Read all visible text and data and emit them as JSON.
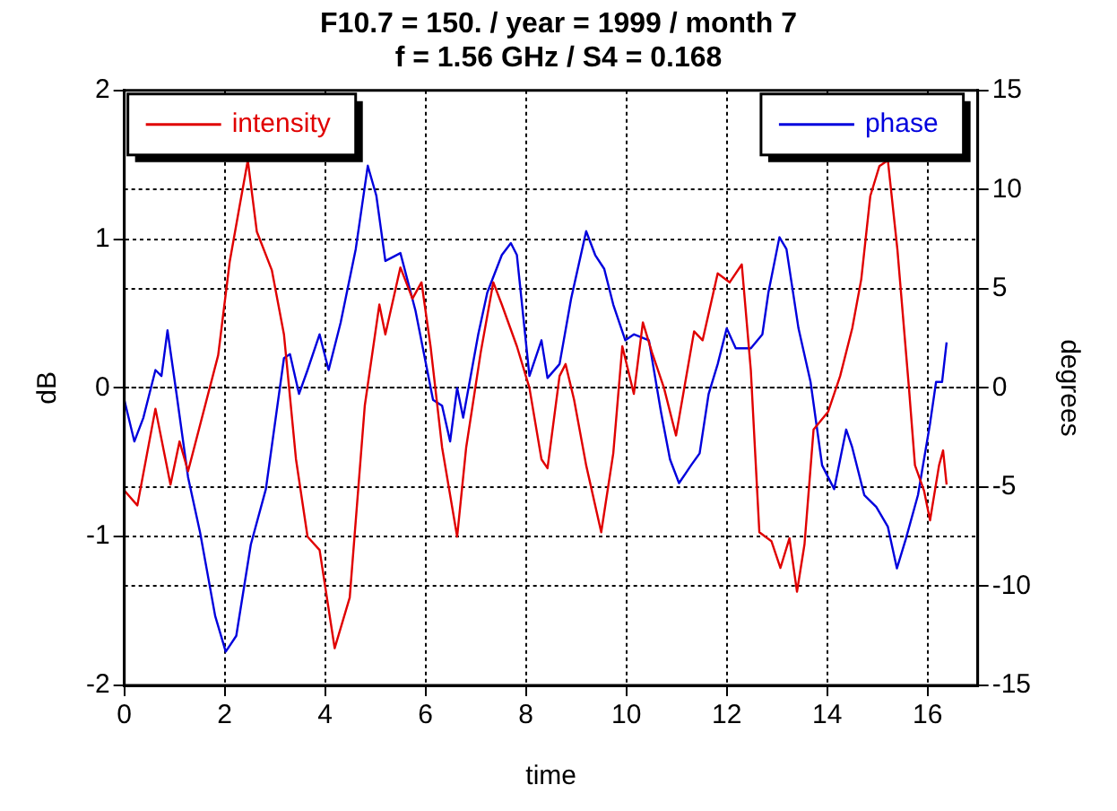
{
  "chart_data": {
    "type": "line",
    "title": "F10.7 = 150. / year = 1999 / month 7",
    "subtitle": "f = 1.56 GHz / S4 = 0.168",
    "xlabel": "time",
    "ylabel": "dB",
    "y2label": "degrees",
    "xlim": [
      0,
      17
    ],
    "xticks": [
      0,
      2,
      4,
      6,
      8,
      10,
      12,
      14,
      16
    ],
    "ylim": [
      -2,
      2
    ],
    "yticks": [
      -2,
      -1,
      0,
      1,
      2
    ],
    "y2lim": [
      -15,
      15
    ],
    "y2ticks": [
      -15,
      -10,
      -5,
      0,
      5,
      10,
      15
    ],
    "grid": true,
    "legend": "top",
    "marker": "none",
    "line_style": "solid",
    "series": [
      {
        "name": "intensity",
        "color": "#e00000",
        "x": [
          0,
          0.26,
          0.62,
          0.92,
          1.1,
          1.27,
          1.87,
          2.1,
          2.29,
          2.46,
          2.64,
          2.94,
          3.18,
          3.42,
          3.65,
          3.89,
          4.19,
          4.49,
          4.79,
          5.08,
          5.2,
          5.5,
          5.74,
          5.92,
          6.1,
          6.33,
          6.63,
          6.81,
          7.1,
          7.35,
          7.52,
          7.82,
          8.07,
          8.31,
          8.43,
          8.67,
          8.79,
          8.96,
          9.2,
          9.5,
          9.74,
          9.92,
          10.15,
          10.33,
          10.51,
          10.75,
          10.99,
          11.35,
          11.52,
          11.82,
          12.06,
          12.3,
          12.48,
          12.65,
          12.89,
          13.07,
          13.25,
          13.4,
          13.55,
          13.73,
          14.02,
          14.26,
          14.5,
          14.68,
          14.86,
          15.04,
          15.21,
          15.4,
          15.63,
          15.75,
          15.93,
          16.05,
          16.23,
          16.31,
          16.38
        ],
        "values": [
          -0.69,
          -0.79,
          -0.14,
          -0.65,
          -0.36,
          -0.56,
          0.22,
          0.85,
          1.21,
          1.53,
          1.05,
          0.79,
          0.36,
          -0.48,
          -1.0,
          -1.09,
          -1.75,
          -1.41,
          -0.12,
          0.56,
          0.36,
          0.81,
          0.6,
          0.71,
          0.28,
          -0.4,
          -1.0,
          -0.4,
          0.24,
          0.71,
          0.56,
          0.28,
          0,
          -0.48,
          -0.54,
          0.08,
          0.16,
          -0.08,
          -0.52,
          -0.97,
          -0.44,
          0.28,
          -0.04,
          0.44,
          0.24,
          0,
          -0.32,
          0.38,
          0.32,
          0.77,
          0.71,
          0.83,
          0.12,
          -0.97,
          -1.03,
          -1.21,
          -1.01,
          -1.37,
          -1.05,
          -0.28,
          -0.16,
          0.08,
          0.4,
          0.73,
          1.29,
          1.49,
          1.53,
          0.93,
          0,
          -0.52,
          -0.69,
          -0.89,
          -0.52,
          -0.42,
          -0.65
        ]
      },
      {
        "name": "phase",
        "color": "#0000dd",
        "axis": "y2",
        "x": [
          0,
          0.2,
          0.38,
          0.62,
          0.74,
          0.86,
          1.04,
          1.27,
          1.51,
          1.81,
          2.02,
          2.23,
          2.52,
          2.82,
          3.18,
          3.3,
          3.48,
          3.65,
          3.89,
          4.07,
          4.31,
          4.61,
          4.85,
          5.02,
          5.2,
          5.5,
          5.8,
          6.15,
          6.33,
          6.49,
          6.63,
          6.75,
          7.05,
          7.23,
          7.52,
          7.7,
          7.82,
          8.07,
          8.31,
          8.43,
          8.67,
          8.9,
          9.2,
          9.38,
          9.56,
          9.74,
          9.98,
          10.15,
          10.45,
          10.69,
          10.87,
          11.05,
          11.29,
          11.46,
          11.64,
          11.82,
          12.0,
          12.18,
          12.48,
          12.71,
          12.83,
          13.05,
          13.19,
          13.43,
          13.67,
          13.9,
          14.14,
          14.38,
          14.5,
          14.74,
          14.98,
          15.21,
          15.39,
          15.57,
          15.81,
          16.05,
          16.17,
          16.29,
          16.38
        ],
        "values": [
          -0.6,
          -2.7,
          -1.5,
          0.9,
          0.6,
          2.9,
          -0.3,
          -4.5,
          -7.3,
          -11.5,
          -13.3,
          -12.5,
          -7.9,
          -5.1,
          1.5,
          1.7,
          -0.3,
          0.9,
          2.7,
          0.9,
          3.3,
          7.0,
          11.2,
          9.7,
          6.4,
          6.8,
          3.9,
          -0.6,
          -0.9,
          -2.7,
          0,
          -1.5,
          2.7,
          4.8,
          6.7,
          7.3,
          6.7,
          0.6,
          2.4,
          0.5,
          1.2,
          4.5,
          7.9,
          6.7,
          6.0,
          4.2,
          2.4,
          2.7,
          2.4,
          -1.2,
          -3.6,
          -4.8,
          -3.9,
          -3.3,
          -0.3,
          1.2,
          3.0,
          2.0,
          2.0,
          2.7,
          4.8,
          7.6,
          7.0,
          3.0,
          0.3,
          -3.9,
          -5.1,
          -2.1,
          -3.0,
          -5.4,
          -6.0,
          -7.0,
          -9.1,
          -7.6,
          -5.4,
          -1.8,
          0.3,
          0.3,
          2.3
        ]
      }
    ]
  }
}
